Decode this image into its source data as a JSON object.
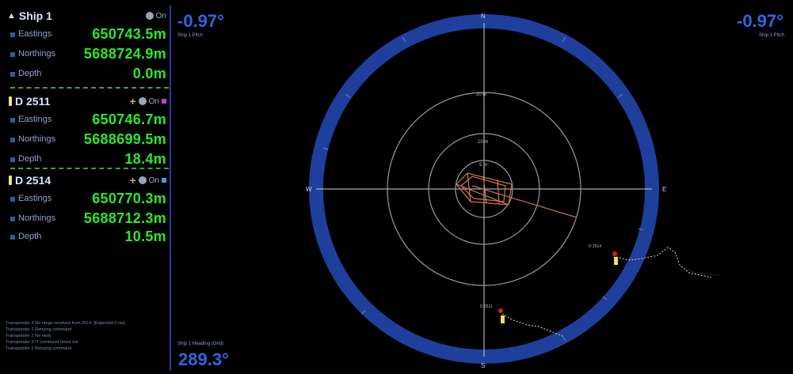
{
  "ship": {
    "name": "Ship 1",
    "easting_label": "Eastings",
    "easting": "650743.5m",
    "northing_label": "Northings",
    "northing": "5688724.9m",
    "depth_label": "Depth",
    "depth": "0.0m"
  },
  "targets": [
    {
      "name": "D 2511",
      "color": "#c040d0",
      "easting_label": "Eastings",
      "easting": "650746.7m",
      "northing_label": "Northings",
      "northing": "5688699.5m",
      "depth_label": "Depth",
      "depth": "18.4m"
    },
    {
      "name": "D 2514",
      "color": "#3aa0e8",
      "easting_label": "Eastings",
      "easting": "650770.3m",
      "northing_label": "Northings",
      "northing": "5688712.3m",
      "depth_label": "Depth",
      "depth": "10.5m"
    }
  ],
  "log": [
    "Transponder 2 No range received from 2514. [Expected 0 ms]",
    "Transponder 2 Retrying command",
    "Transponder 2 No reply",
    "Transponder 2 IT command timed out",
    "Transponder 2 Retrying command"
  ],
  "pitch_left": {
    "value": "-0.97°",
    "label": "Ship 1 Pitch"
  },
  "pitch_right": {
    "value": "-0.97°",
    "label": "Ship 1 Pitch"
  },
  "heading": {
    "label": "Ship 1 Heading (Grid)",
    "value": "289.3°"
  },
  "compass": {
    "north": "N",
    "east": "E",
    "south": "S",
    "west": "W"
  },
  "rings": {
    "inner": "5 m",
    "middle": "10 m",
    "outer": "20 m"
  },
  "target_labels": {
    "a": "D 2514",
    "b": "D 2511"
  },
  "colors": {
    "ring": "#1e3f9c",
    "value": "#2ee82a",
    "accent": "#2f66e0",
    "ship": "#d07850"
  }
}
